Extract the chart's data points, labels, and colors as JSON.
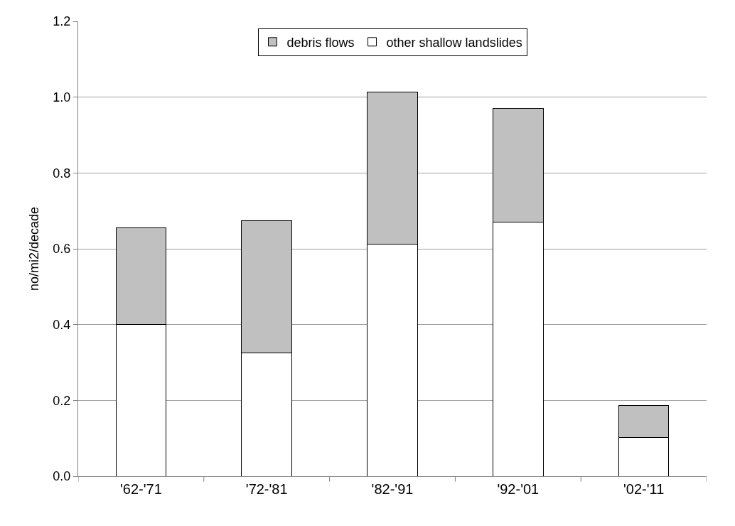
{
  "chart_data": {
    "type": "bar",
    "stacked": true,
    "ylabel": "no/mi2/decade",
    "categories": [
      "'62-'71",
      "'72-'81",
      "'82-'91",
      "'92-'01",
      "'02-'11"
    ],
    "series": [
      {
        "name": "other shallow landslides",
        "color": "#ffffff",
        "values": [
          0.4,
          0.325,
          0.613,
          0.67,
          0.103
        ]
      },
      {
        "name": "debris flows",
        "color": "#c0c0c0",
        "values": [
          0.255,
          0.35,
          0.4,
          0.3,
          0.084
        ]
      }
    ],
    "ylim": [
      0,
      1.2
    ],
    "yticks": [
      {
        "value": 0,
        "label": "0.0"
      },
      0.2,
      0.4,
      0.6,
      0.8,
      {
        "value": 1,
        "label": "1.0"
      },
      1.2
    ],
    "grid": "y",
    "legend": "top"
  }
}
